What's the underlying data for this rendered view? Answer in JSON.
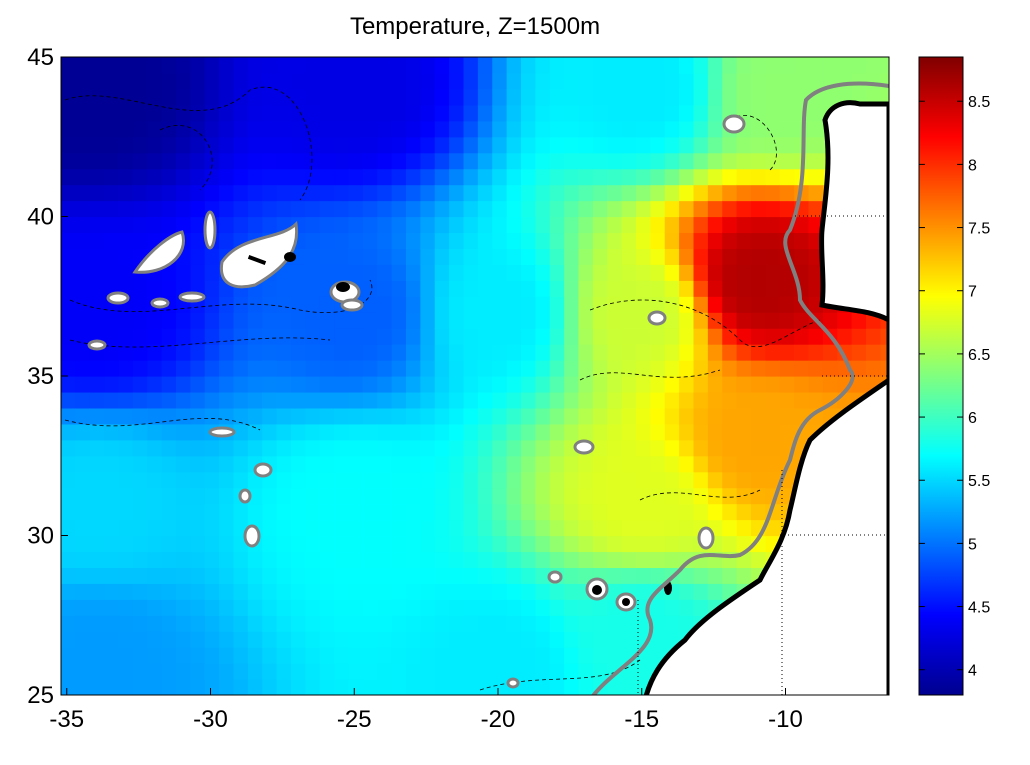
{
  "chart_data": {
    "type": "heatmap",
    "title": "Temperature, Z=1500m",
    "xlabel": "",
    "ylabel": "",
    "xlim": [
      -35.2,
      -6.4
    ],
    "ylim": [
      25,
      45
    ],
    "x_ticks": [
      -35,
      -30,
      -25,
      -20,
      -15,
      -10
    ],
    "y_ticks": [
      25,
      30,
      35,
      40,
      45
    ],
    "x_tick_labels": [
      "-35",
      "-30",
      "-25",
      "-20",
      "-15",
      "-10"
    ],
    "y_tick_labels": [
      "25",
      "30",
      "35",
      "40",
      "45"
    ],
    "colorbar": {
      "range": [
        3.8,
        8.85
      ],
      "ticks": [
        4,
        4.5,
        5,
        5.5,
        6,
        6.5,
        7,
        7.5,
        8,
        8.5
      ],
      "tick_labels": [
        "4",
        "4.5",
        "5",
        "5.5",
        "6",
        "6.5",
        "7",
        "7.5",
        "8",
        "8.5"
      ],
      "colormap": "jet"
    },
    "field_samples": [
      {
        "lon": -34,
        "lat": 44,
        "value": 3.9
      },
      {
        "lon": -25,
        "lat": 44,
        "value": 4.3
      },
      {
        "lon": -15,
        "lat": 44,
        "value": 5.6
      },
      {
        "lon": -10,
        "lat": 44,
        "value": 6.4
      },
      {
        "lon": -34,
        "lat": 37,
        "value": 4.4
      },
      {
        "lon": -25,
        "lat": 37,
        "value": 4.9
      },
      {
        "lon": -20,
        "lat": 37,
        "value": 5.6
      },
      {
        "lon": -15,
        "lat": 37,
        "value": 6.7
      },
      {
        "lon": -11,
        "lat": 38,
        "value": 8.6
      },
      {
        "lon": -34,
        "lat": 31,
        "value": 5.5
      },
      {
        "lon": -25,
        "lat": 31,
        "value": 5.7
      },
      {
        "lon": -15,
        "lat": 31,
        "value": 6.8
      },
      {
        "lon": -11,
        "lat": 33,
        "value": 7.4
      },
      {
        "lon": -34,
        "lat": 26,
        "value": 5.2
      },
      {
        "lon": -20,
        "lat": 26,
        "value": 5.6
      },
      {
        "lon": -15,
        "lat": 27,
        "value": 5.8
      }
    ],
    "grid": "dotted over land"
  },
  "colors": {
    "land": "#ffffff",
    "coast": "#000000",
    "contour_gray": "#808080"
  }
}
